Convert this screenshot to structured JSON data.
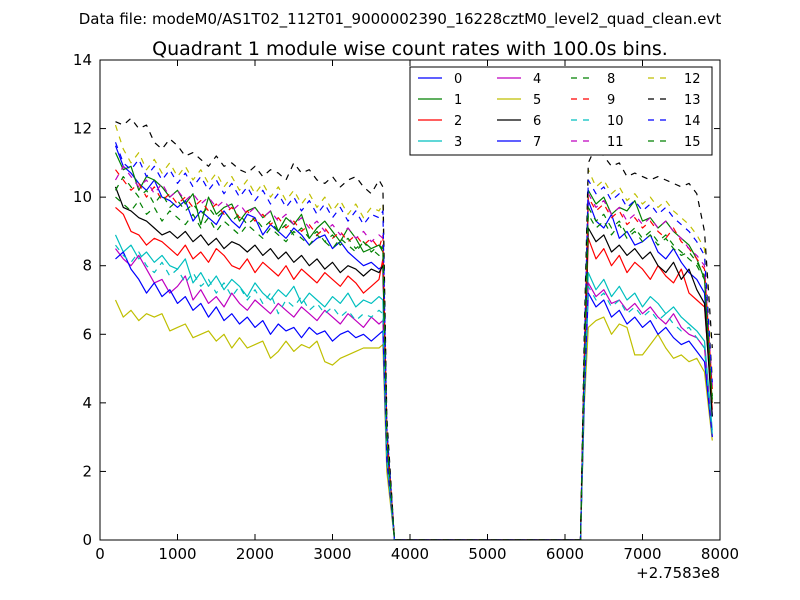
{
  "chart_data": {
    "type": "line",
    "suptitle": "Data file: modeM0/AS1T02_112T01_9000002390_16228cztM0_level2_quad_clean.evt",
    "title": "Quadrant 1 module wise count rates with 100.0s bins.",
    "xlabel": "",
    "ylabel": "",
    "xlim": [
      0,
      8000
    ],
    "ylim": [
      0,
      14
    ],
    "x_ticks": [
      0,
      1000,
      2000,
      3000,
      4000,
      5000,
      6000,
      7000,
      8000
    ],
    "y_ticks": [
      0,
      2,
      4,
      6,
      8,
      10,
      12,
      14
    ],
    "x_offset_label": "+2.7583e8",
    "grid": false,
    "legend_position": "upper right",
    "legend_columns": 4,
    "x": [
      200,
      300,
      400,
      500,
      600,
      700,
      800,
      900,
      1000,
      1100,
      1200,
      1300,
      1400,
      1500,
      1600,
      1700,
      1800,
      1900,
      2000,
      2100,
      2200,
      2300,
      2400,
      2500,
      2600,
      2700,
      2800,
      2900,
      3000,
      3100,
      3200,
      3300,
      3400,
      3500,
      3600,
      3650,
      3700,
      3800,
      6200,
      6250,
      6300,
      6400,
      6500,
      6600,
      6700,
      6800,
      6900,
      7000,
      7100,
      7200,
      7300,
      7400,
      7500,
      7600,
      7700,
      7800,
      7900
    ],
    "series": [
      {
        "name": "0",
        "color": "#0000ff",
        "dash": "solid",
        "values": [
          11.5,
          10.9,
          10.7,
          10.4,
          10.2,
          10.5,
          10.0,
          9.9,
          9.7,
          9.9,
          9.3,
          9.6,
          9.4,
          9.2,
          9.6,
          9.3,
          9.1,
          9.5,
          9.4,
          8.9,
          9.2,
          9.0,
          8.8,
          9.1,
          8.9,
          8.6,
          8.8,
          8.9,
          8.5,
          8.7,
          8.4,
          8.2,
          8.0,
          8.1,
          7.9,
          8.0,
          3.0,
          0,
          0,
          5.0,
          9.9,
          9.3,
          9.1,
          9.5,
          8.8,
          9.0,
          8.6,
          8.7,
          8.9,
          8.4,
          8.2,
          8.5,
          8.1,
          7.8,
          7.6,
          7.2,
          3.6
        ]
      },
      {
        "name": "1",
        "color": "#008000",
        "dash": "solid",
        "values": [
          11.3,
          10.8,
          10.9,
          10.2,
          10.6,
          10.5,
          10.3,
          10.0,
          10.2,
          9.8,
          10.1,
          9.2,
          10.0,
          9.5,
          9.7,
          9.8,
          9.3,
          9.6,
          9.7,
          9.4,
          9.6,
          9.0,
          9.4,
          9.2,
          9.5,
          8.8,
          9.1,
          9.3,
          9.0,
          8.7,
          9.1,
          8.8,
          8.4,
          8.5,
          8.6,
          8.4,
          3.2,
          0,
          0,
          5.3,
          10.2,
          9.8,
          10.0,
          9.5,
          9.7,
          9.6,
          9.9,
          9.3,
          9.4,
          9.1,
          9.3,
          9.0,
          8.8,
          8.6,
          8.2,
          7.6,
          4.0
        ]
      },
      {
        "name": "2",
        "color": "#ff0000",
        "dash": "solid",
        "values": [
          9.7,
          9.5,
          9.0,
          8.9,
          8.6,
          8.8,
          8.7,
          8.5,
          8.3,
          8.6,
          8.2,
          8.4,
          8.1,
          8.5,
          8.3,
          8.0,
          7.9,
          8.2,
          7.8,
          8.1,
          7.9,
          7.7,
          8.0,
          7.6,
          7.9,
          7.7,
          7.5,
          7.8,
          7.6,
          7.4,
          7.7,
          7.5,
          7.2,
          7.4,
          7.6,
          8.2,
          2.8,
          0,
          0,
          5.0,
          8.8,
          8.2,
          8.5,
          8.0,
          8.3,
          7.8,
          8.1,
          7.9,
          7.6,
          8.0,
          7.7,
          7.5,
          7.9,
          7.2,
          7.0,
          6.8,
          3.8
        ]
      },
      {
        "name": "3",
        "color": "#00bfbf",
        "dash": "solid",
        "values": [
          8.9,
          8.4,
          8.6,
          8.2,
          8.4,
          8.1,
          8.3,
          8.0,
          7.9,
          8.2,
          7.5,
          7.8,
          7.4,
          7.7,
          7.3,
          7.6,
          7.4,
          7.1,
          7.5,
          7.2,
          7.0,
          7.3,
          7.1,
          7.4,
          6.9,
          7.2,
          7.0,
          6.8,
          7.1,
          6.9,
          7.2,
          6.8,
          7.0,
          6.9,
          7.1,
          7.0,
          2.5,
          0,
          0,
          4.8,
          7.8,
          7.3,
          7.6,
          7.1,
          7.4,
          7.0,
          7.2,
          6.8,
          7.1,
          6.9,
          6.6,
          6.8,
          6.5,
          6.3,
          6.1,
          5.8,
          3.2
        ]
      },
      {
        "name": "4",
        "color": "#bf00bf",
        "dash": "solid",
        "values": [
          8.5,
          8.2,
          8.0,
          8.3,
          7.9,
          7.5,
          7.6,
          7.2,
          7.4,
          7.7,
          7.0,
          7.3,
          6.9,
          7.1,
          6.8,
          7.2,
          6.9,
          6.7,
          7.0,
          6.8,
          6.6,
          6.9,
          6.7,
          6.5,
          6.8,
          6.6,
          6.4,
          6.7,
          6.5,
          6.3,
          6.6,
          6.4,
          6.2,
          6.5,
          6.3,
          6.4,
          2.4,
          0,
          0,
          4.6,
          7.5,
          7.1,
          7.3,
          6.9,
          7.0,
          6.7,
          6.9,
          6.6,
          6.8,
          6.5,
          6.3,
          6.6,
          6.2,
          6.0,
          5.9,
          5.6,
          3.0
        ]
      },
      {
        "name": "5",
        "color": "#bfbf00",
        "dash": "solid",
        "values": [
          7.0,
          6.5,
          6.7,
          6.4,
          6.6,
          6.5,
          6.6,
          6.1,
          6.2,
          6.3,
          5.9,
          6.0,
          6.1,
          5.8,
          6.0,
          5.6,
          5.9,
          5.6,
          5.7,
          5.8,
          5.3,
          5.5,
          5.8,
          5.5,
          5.7,
          5.6,
          5.8,
          5.2,
          5.1,
          5.3,
          5.4,
          5.5,
          5.6,
          5.6,
          5.6,
          5.7,
          2.0,
          0,
          0,
          4.0,
          6.2,
          6.4,
          6.5,
          6.0,
          6.3,
          6.2,
          5.4,
          5.4,
          5.7,
          6.0,
          5.6,
          5.3,
          5.4,
          5.2,
          5.3,
          4.9,
          2.9
        ]
      },
      {
        "name": "6",
        "color": "#000000",
        "dash": "solid",
        "values": [
          10.3,
          9.7,
          9.6,
          9.4,
          9.3,
          9.1,
          8.9,
          9.0,
          8.8,
          9.0,
          8.7,
          8.9,
          8.6,
          8.8,
          8.5,
          8.7,
          8.6,
          8.4,
          8.6,
          8.3,
          8.5,
          8.2,
          8.4,
          8.1,
          8.3,
          8.0,
          8.2,
          7.9,
          8.1,
          7.8,
          8.0,
          7.9,
          7.7,
          7.9,
          7.8,
          8.0,
          2.9,
          0,
          0,
          5.2,
          9.1,
          8.7,
          8.9,
          8.4,
          8.6,
          8.3,
          8.5,
          8.2,
          8.4,
          8.0,
          7.8,
          8.1,
          7.6,
          7.9,
          7.3,
          6.9,
          3.6
        ]
      },
      {
        "name": "7",
        "color": "#0000ff",
        "dash": "solid",
        "values": [
          8.2,
          8.4,
          7.9,
          7.6,
          7.2,
          7.5,
          7.1,
          7.3,
          6.9,
          7.1,
          6.7,
          6.9,
          6.5,
          6.8,
          6.4,
          6.6,
          6.3,
          6.5,
          6.2,
          6.4,
          6.0,
          6.3,
          6.1,
          6.2,
          5.9,
          6.2,
          6.0,
          6.1,
          5.8,
          6.0,
          6.1,
          5.9,
          6.0,
          5.8,
          6.0,
          6.1,
          2.3,
          0,
          0,
          4.2,
          7.2,
          6.8,
          7.0,
          6.5,
          6.7,
          6.3,
          6.5,
          6.2,
          6.4,
          6.0,
          6.2,
          5.9,
          5.7,
          5.8,
          5.5,
          5.2,
          3.0
        ]
      },
      {
        "name": "8",
        "color": "#008000",
        "dash": "dash",
        "values": [
          10.0,
          9.8,
          9.6,
          9.9,
          9.5,
          9.7,
          9.3,
          9.6,
          9.4,
          9.2,
          9.5,
          9.1,
          9.4,
          9.0,
          9.3,
          9.1,
          8.9,
          9.2,
          9.0,
          8.8,
          9.1,
          8.9,
          8.7,
          9.0,
          8.8,
          8.6,
          8.9,
          8.7,
          8.5,
          8.8,
          8.6,
          8.4,
          8.7,
          8.5,
          8.3,
          8.6,
          3.0,
          0,
          0,
          5.2,
          9.5,
          9.1,
          9.3,
          8.9,
          9.2,
          8.8,
          9.0,
          8.7,
          8.9,
          8.6,
          8.8,
          8.5,
          8.3,
          8.4,
          8.1,
          7.7,
          4.2
        ]
      },
      {
        "name": "9",
        "color": "#ff0000",
        "dash": "dash",
        "values": [
          10.8,
          10.5,
          10.2,
          10.4,
          10.0,
          10.3,
          9.9,
          10.1,
          9.8,
          10.0,
          9.7,
          9.9,
          9.6,
          9.8,
          9.5,
          9.7,
          9.4,
          9.6,
          9.3,
          9.5,
          9.2,
          9.4,
          9.1,
          9.3,
          9.0,
          9.2,
          8.9,
          9.1,
          8.8,
          9.0,
          8.7,
          8.9,
          8.6,
          8.8,
          8.5,
          8.9,
          3.1,
          0,
          0,
          5.4,
          10.0,
          9.6,
          9.8,
          9.4,
          9.6,
          9.2,
          9.4,
          9.1,
          9.3,
          9.0,
          8.8,
          9.1,
          8.7,
          8.5,
          8.2,
          7.9,
          4.4
        ]
      },
      {
        "name": "10",
        "color": "#00bfbf",
        "dash": "dash",
        "values": [
          8.6,
          8.3,
          8.1,
          8.4,
          8.0,
          7.8,
          8.1,
          7.7,
          7.9,
          7.5,
          7.8,
          7.4,
          7.6,
          7.2,
          7.5,
          7.1,
          7.4,
          7.0,
          7.3,
          6.9,
          7.2,
          6.6,
          7.0,
          6.8,
          7.1,
          6.7,
          6.9,
          6.6,
          6.8,
          6.5,
          6.7,
          6.4,
          6.6,
          6.5,
          6.7,
          6.6,
          2.4,
          0,
          0,
          4.4,
          7.4,
          7.0,
          7.2,
          6.8,
          7.0,
          6.6,
          6.8,
          6.5,
          6.7,
          6.4,
          6.6,
          6.3,
          6.1,
          6.2,
          5.9,
          5.6,
          3.1
        ]
      },
      {
        "name": "11",
        "color": "#bf00bf",
        "dash": "dash",
        "values": [
          10.5,
          10.9,
          10.6,
          10.3,
          10.5,
          10.1,
          10.4,
          10.0,
          10.2,
          9.9,
          10.1,
          9.8,
          10.0,
          9.7,
          9.9,
          9.6,
          9.8,
          9.5,
          9.7,
          9.4,
          9.6,
          9.3,
          9.5,
          9.2,
          9.4,
          9.1,
          9.3,
          9.0,
          9.2,
          8.9,
          9.1,
          8.8,
          9.0,
          8.7,
          8.9,
          8.8,
          3.2,
          0,
          0,
          5.5,
          10.1,
          9.7,
          9.9,
          9.5,
          9.7,
          9.3,
          9.5,
          9.2,
          9.4,
          9.1,
          9.3,
          9.0,
          8.8,
          8.5,
          8.3,
          8.0,
          4.5
        ]
      },
      {
        "name": "12",
        "color": "#bfbf00",
        "dash": "dash",
        "values": [
          12.1,
          11.4,
          11.0,
          11.3,
          10.8,
          11.1,
          10.7,
          11.0,
          10.6,
          10.9,
          10.5,
          10.8,
          10.4,
          10.7,
          10.3,
          10.6,
          10.2,
          10.5,
          10.1,
          10.4,
          10.0,
          10.3,
          9.9,
          10.2,
          9.8,
          10.1,
          9.7,
          10.0,
          9.6,
          9.9,
          9.5,
          9.8,
          9.4,
          9.7,
          9.6,
          9.8,
          3.4,
          0,
          0,
          5.8,
          10.8,
          10.3,
          10.5,
          10.1,
          10.3,
          9.9,
          10.1,
          9.8,
          10.0,
          9.7,
          9.9,
          9.6,
          9.4,
          9.2,
          8.9,
          8.5,
          4.8
        ]
      },
      {
        "name": "13",
        "color": "#000000",
        "dash": "dash",
        "values": [
          12.2,
          12.1,
          12.3,
          12.0,
          12.1,
          11.6,
          11.4,
          11.7,
          11.5,
          11.2,
          11.3,
          11.1,
          10.9,
          11.2,
          10.9,
          11.0,
          10.8,
          10.7,
          10.9,
          10.6,
          10.8,
          10.7,
          10.5,
          11.0,
          10.7,
          10.8,
          10.5,
          10.4,
          10.6,
          10.3,
          10.5,
          10.6,
          10.3,
          10.1,
          10.5,
          10.3,
          3.6,
          0,
          0,
          6.2,
          11.0,
          11.5,
          11.2,
          10.9,
          11.0,
          10.6,
          10.7,
          10.6,
          10.5,
          10.6,
          10.5,
          10.4,
          10.3,
          10.4,
          10.1,
          9.0,
          5.6
        ]
      },
      {
        "name": "14",
        "color": "#0000ff",
        "dash": "dash",
        "values": [
          11.6,
          11.0,
          10.8,
          11.1,
          10.6,
          10.9,
          10.5,
          10.8,
          10.4,
          10.7,
          10.3,
          10.6,
          10.2,
          10.5,
          10.1,
          10.4,
          10.0,
          10.3,
          9.9,
          10.2,
          9.8,
          10.1,
          9.7,
          10.0,
          9.6,
          9.9,
          9.5,
          9.8,
          9.4,
          9.7,
          9.3,
          9.6,
          9.2,
          9.5,
          9.4,
          9.6,
          3.3,
          0,
          0,
          5.6,
          10.5,
          10.1,
          10.3,
          9.9,
          10.1,
          9.7,
          9.9,
          9.6,
          9.8,
          9.5,
          9.7,
          9.4,
          9.2,
          9.0,
          8.7,
          8.3,
          4.6
        ]
      },
      {
        "name": "15",
        "color": "#008000",
        "dash": "dash",
        "values": [
          10.2,
          10.6,
          10.3,
          10.0,
          10.2,
          9.8,
          10.1,
          9.7,
          9.9,
          9.6,
          9.8,
          9.5,
          9.7,
          9.4,
          9.6,
          9.3,
          9.5,
          9.2,
          9.4,
          9.1,
          9.3,
          9.0,
          9.2,
          8.9,
          9.1,
          8.8,
          9.0,
          8.7,
          8.9,
          8.6,
          8.8,
          8.5,
          8.7,
          8.4,
          8.6,
          8.5,
          3.0,
          0,
          0,
          5.3,
          9.7,
          9.3,
          9.5,
          9.1,
          9.3,
          8.9,
          9.1,
          8.8,
          9.0,
          8.7,
          8.9,
          8.6,
          8.4,
          8.2,
          8.0,
          7.6,
          4.1
        ]
      }
    ]
  }
}
